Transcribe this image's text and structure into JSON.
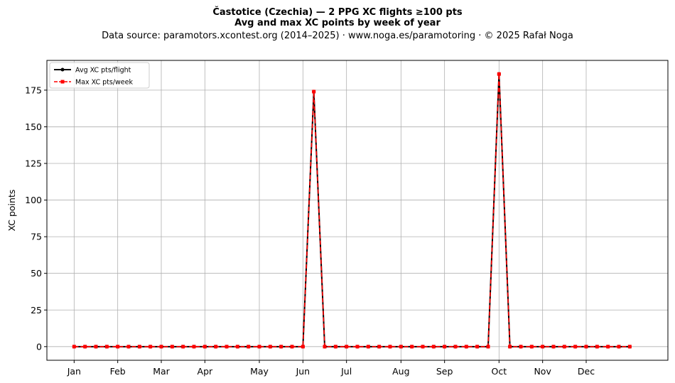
{
  "header": {
    "title": "Častotice (Czechia)  —  2 PPG XC flights ≥100 pts",
    "subtitle": "Avg and max XC points by week of year",
    "source": "Data source: paramotors.xcontest.org (2014–2025)  ·  www.noga.es/paramotoring  ·  © 2025 Rafał Noga"
  },
  "chart_data": {
    "type": "line",
    "title": "Častotice (Czechia)  —  2 PPG XC flights ≥100 pts",
    "subtitle": "Avg and max XC points by week of year",
    "xlabel": "",
    "ylabel": "XC points",
    "x": [
      1,
      2,
      3,
      4,
      5,
      6,
      7,
      8,
      9,
      10,
      11,
      12,
      13,
      14,
      15,
      16,
      17,
      18,
      19,
      20,
      21,
      22,
      23,
      24,
      25,
      26,
      27,
      28,
      29,
      30,
      31,
      32,
      33,
      34,
      35,
      36,
      37,
      38,
      39,
      40,
      41,
      42,
      43,
      44,
      45,
      46,
      47,
      48,
      49,
      50,
      51,
      52
    ],
    "xlim": [
      -1.5,
      55.5
    ],
    "ylim": [
      -9.3,
      195.3
    ],
    "xticks": [
      {
        "x": 1,
        "label": "Jan"
      },
      {
        "x": 5,
        "label": "Feb"
      },
      {
        "x": 9,
        "label": "Mar"
      },
      {
        "x": 13,
        "label": "Apr"
      },
      {
        "x": 18,
        "label": "May"
      },
      {
        "x": 22,
        "label": "Jun"
      },
      {
        "x": 26,
        "label": "Jul"
      },
      {
        "x": 31,
        "label": "Aug"
      },
      {
        "x": 35,
        "label": "Sep"
      },
      {
        "x": 40,
        "label": "Oct"
      },
      {
        "x": 44,
        "label": "Nov"
      },
      {
        "x": 48,
        "label": "Dec"
      }
    ],
    "yticks": [
      0,
      25,
      50,
      75,
      100,
      125,
      150,
      175
    ],
    "grid": true,
    "legend_position": "top-left",
    "series": [
      {
        "name": "Avg XC pts/flight",
        "color": "#000000",
        "style": "solid",
        "marker": "circle",
        "values": [
          0,
          0,
          0,
          0,
          0,
          0,
          0,
          0,
          0,
          0,
          0,
          0,
          0,
          0,
          0,
          0,
          0,
          0,
          0,
          0,
          0,
          0,
          174,
          0,
          0,
          0,
          0,
          0,
          0,
          0,
          0,
          0,
          0,
          0,
          0,
          0,
          0,
          0,
          0,
          186,
          0,
          0,
          0,
          0,
          0,
          0,
          0,
          0,
          0,
          0,
          0,
          0
        ]
      },
      {
        "name": "Max XC pts/week",
        "color": "#ff0000",
        "style": "dashed",
        "marker": "square",
        "values": [
          0,
          0,
          0,
          0,
          0,
          0,
          0,
          0,
          0,
          0,
          0,
          0,
          0,
          0,
          0,
          0,
          0,
          0,
          0,
          0,
          0,
          0,
          174,
          0,
          0,
          0,
          0,
          0,
          0,
          0,
          0,
          0,
          0,
          0,
          0,
          0,
          0,
          0,
          0,
          186,
          0,
          0,
          0,
          0,
          0,
          0,
          0,
          0,
          0,
          0,
          0,
          0
        ]
      }
    ]
  }
}
